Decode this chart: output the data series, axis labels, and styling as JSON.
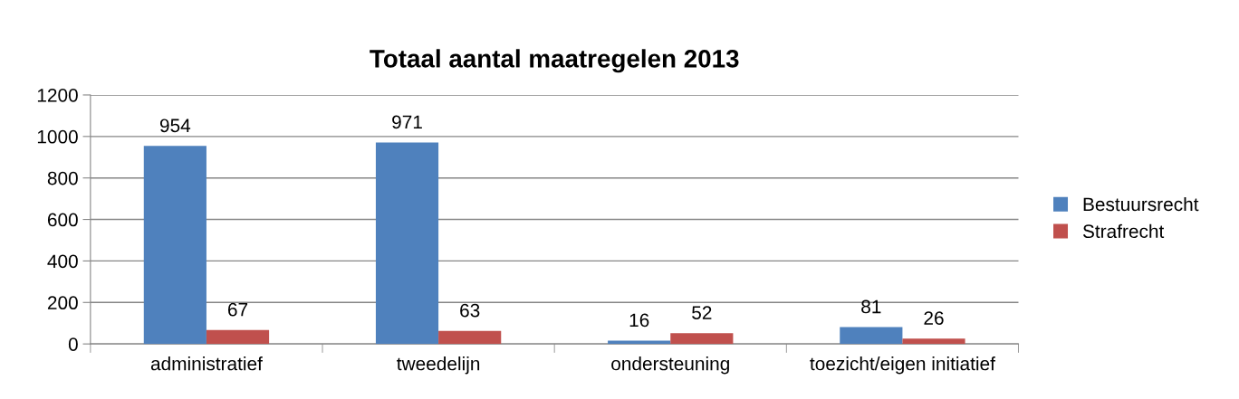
{
  "chart_data": {
    "type": "bar",
    "title": "Totaal aantal maatregelen 2013",
    "categories": [
      "administratief",
      "tweedelijn",
      "ondersteuning",
      "toezicht/eigen initiatief"
    ],
    "series": [
      {
        "name": "Bestuursrecht",
        "color": "#4f81bd",
        "values": [
          954,
          971,
          16,
          81
        ]
      },
      {
        "name": "Strafrecht",
        "color": "#c0504d",
        "values": [
          67,
          63,
          52,
          26
        ]
      }
    ],
    "ylim": [
      0,
      1200
    ],
    "yticks": [
      0,
      200,
      400,
      600,
      800,
      1000,
      1200
    ],
    "grid": "y",
    "legend": "right",
    "data_labels": true
  }
}
